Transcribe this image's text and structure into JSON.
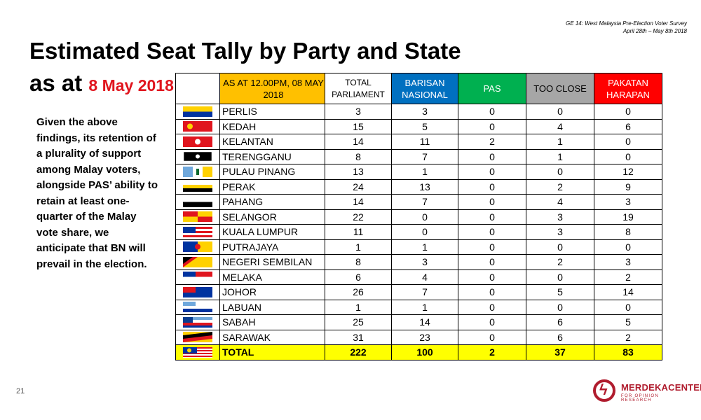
{
  "survey": {
    "line1": "GE 14: West Malaysia Pre-Election Voter Survey",
    "line2": "April 28th – May 8th 2018"
  },
  "title": {
    "line1": "Estimated  Seat Tally by Party and State",
    "line2_prefix": "as at ",
    "date": "8 May 2018"
  },
  "paragraph": "Given the above findings, its retention of a plurality of support among Malay voters, alongside PAS’ ability to retain at least one-quarter of the Malay vote share, we anticipate that BN will prevail in the election.",
  "page_number": "21",
  "logo": {
    "name": "MERDEKACENTER",
    "sub": "FOR OPINION RESEARCH"
  },
  "table": {
    "headers": {
      "as_at": "AS AT 12.00PM, 08 MAY 2018",
      "total": "TOTAL PARLIAMENT",
      "bn": "BARISAN NASIONAL",
      "pas": "PAS",
      "close": "TOO CLOSE",
      "ph": "PAKATAN HARAPAN"
    },
    "rows": [
      {
        "state": "PERLIS",
        "total": "3",
        "bn": "3",
        "pas": "0",
        "close": "0",
        "ph": "0",
        "flag": "perlis-flag-icon"
      },
      {
        "state": "KEDAH",
        "total": "15",
        "bn": "5",
        "pas": "0",
        "close": "4",
        "ph": "6",
        "flag": "kedah-flag-icon"
      },
      {
        "state": "KELANTAN",
        "total": "14",
        "bn": "11",
        "pas": "2",
        "close": "1",
        "ph": "0",
        "flag": "kelantan-flag-icon"
      },
      {
        "state": "TERENGGANU",
        "total": "8",
        "bn": "7",
        "pas": "0",
        "close": "1",
        "ph": "0",
        "flag": "terengganu-flag-icon"
      },
      {
        "state": "PULAU PINANG",
        "total": "13",
        "bn": "1",
        "pas": "0",
        "close": "0",
        "ph": "12",
        "flag": "penang-flag-icon"
      },
      {
        "state": "PERAK",
        "total": "24",
        "bn": "13",
        "pas": "0",
        "close": "2",
        "ph": "9",
        "flag": "perak-flag-icon"
      },
      {
        "state": "PAHANG",
        "total": "14",
        "bn": "7",
        "pas": "0",
        "close": "4",
        "ph": "3",
        "flag": "pahang-flag-icon"
      },
      {
        "state": "SELANGOR",
        "total": "22",
        "bn": "0",
        "pas": "0",
        "close": "3",
        "ph": "19",
        "flag": "selangor-flag-icon"
      },
      {
        "state": "KUALA LUMPUR",
        "total": "11",
        "bn": "0",
        "pas": "0",
        "close": "3",
        "ph": "8",
        "flag": "kuala-lumpur-flag-icon"
      },
      {
        "state": "PUTRAJAYA",
        "total": "1",
        "bn": "1",
        "pas": "0",
        "close": "0",
        "ph": "0",
        "flag": "putrajaya-flag-icon"
      },
      {
        "state": "NEGERI SEMBILAN",
        "total": "8",
        "bn": "3",
        "pas": "0",
        "close": "2",
        "ph": "3",
        "flag": "negeri-sembilan-flag-icon"
      },
      {
        "state": "MELAKA",
        "total": "6",
        "bn": "4",
        "pas": "0",
        "close": "0",
        "ph": "2",
        "flag": "melaka-flag-icon"
      },
      {
        "state": "JOHOR",
        "total": "26",
        "bn": "7",
        "pas": "0",
        "close": "5",
        "ph": "14",
        "flag": "johor-flag-icon"
      },
      {
        "state": "LABUAN",
        "total": "1",
        "bn": "1",
        "pas": "0",
        "close": "0",
        "ph": "0",
        "flag": "labuan-flag-icon"
      },
      {
        "state": "SABAH",
        "total": "25",
        "bn": "14",
        "pas": "0",
        "close": "6",
        "ph": "5",
        "flag": "sabah-flag-icon"
      },
      {
        "state": "SARAWAK",
        "total": "31",
        "bn": "23",
        "pas": "0",
        "close": "6",
        "ph": "2",
        "flag": "sarawak-flag-icon"
      }
    ],
    "total_row": {
      "state": "TOTAL",
      "total": "222",
      "bn": "100",
      "pas": "2",
      "close": "37",
      "ph": "83",
      "flag": "malaysia-flag-icon"
    }
  }
}
